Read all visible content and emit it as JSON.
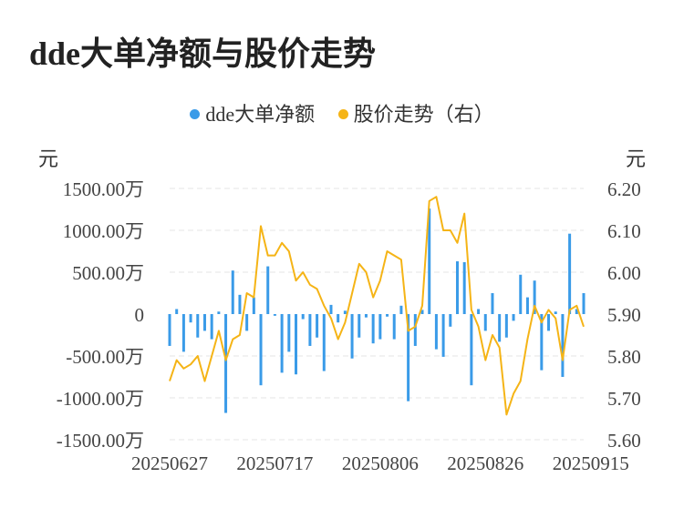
{
  "title": "dde大单净额与股价走势",
  "units": {
    "left": "元",
    "right": "元"
  },
  "legend": [
    {
      "name": "dde大单净额",
      "color": "#3a9be8"
    },
    {
      "name": "股价走势（右）",
      "color": "#f5b416"
    }
  ],
  "chart_data": {
    "type": "bar+line",
    "grid": "horizontal dashed",
    "legend_position": "top-center",
    "x_tick_labels": [
      "20250627",
      "20250717",
      "20250806",
      "20250826",
      "20250915"
    ],
    "y_left": {
      "ticks": [
        1500,
        1000,
        500,
        0,
        -500,
        -1000,
        -1500
      ],
      "tick_labels": [
        "1500.00万",
        "1000.00万",
        "500.00万",
        "0",
        "-500.00万",
        "-1000.00万",
        "-1500.00万"
      ],
      "range": [
        -1500,
        1500
      ]
    },
    "y_right": {
      "ticks": [
        6.2,
        6.1,
        6.0,
        5.9,
        5.8,
        5.7,
        5.6
      ],
      "tick_labels": [
        "6.20",
        "6.10",
        "6.00",
        "5.90",
        "5.80",
        "5.70",
        "5.60"
      ],
      "range": [
        5.6,
        6.2
      ]
    },
    "series": [
      {
        "name": "dde大单净额",
        "kind": "bar",
        "axis": "left",
        "color": "#3a9be8",
        "values": [
          -380,
          60,
          -450,
          -100,
          -280,
          -200,
          -300,
          30,
          -1180,
          520,
          230,
          -200,
          200,
          -850,
          570,
          -20,
          -700,
          -450,
          -720,
          -60,
          -380,
          -280,
          -680,
          110,
          -100,
          40,
          -530,
          -280,
          -40,
          -350,
          -300,
          -30,
          -300,
          100,
          -1040,
          -380,
          50,
          1260,
          -420,
          -510,
          -150,
          630,
          620,
          -850,
          60,
          -200,
          250,
          -330,
          -280,
          -80,
          470,
          200,
          400,
          -670,
          -200,
          30,
          -750,
          960,
          60,
          250
        ]
      },
      {
        "name": "股价走势（右）",
        "kind": "line",
        "axis": "right",
        "color": "#f5b416",
        "values": [
          5.74,
          5.79,
          5.77,
          5.78,
          5.8,
          5.74,
          5.8,
          5.86,
          5.79,
          5.84,
          5.85,
          5.95,
          5.94,
          6.11,
          6.04,
          6.04,
          6.07,
          6.05,
          5.98,
          6.0,
          5.97,
          5.96,
          5.92,
          5.89,
          5.84,
          5.88,
          5.95,
          6.02,
          6.0,
          5.94,
          5.98,
          6.05,
          6.04,
          6.03,
          5.86,
          5.87,
          5.92,
          6.17,
          6.18,
          6.1,
          6.1,
          6.07,
          6.14,
          5.91,
          5.87,
          5.79,
          5.85,
          5.82,
          5.66,
          5.71,
          5.74,
          5.84,
          5.92,
          5.88,
          5.91,
          5.89,
          5.79,
          5.91,
          5.92,
          5.87
        ]
      }
    ]
  }
}
